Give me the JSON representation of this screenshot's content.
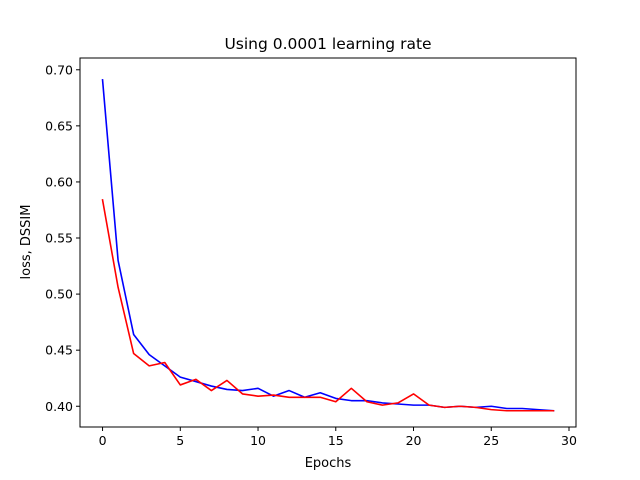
{
  "chart_data": {
    "type": "line",
    "title": "Using 0.0001 learning rate",
    "xlabel": "Epochs",
    "ylabel": "loss, DSSIM",
    "xlim": [
      -1.45,
      30.45
    ],
    "ylim": [
      0.3815,
      0.7105
    ],
    "xticks": [
      0,
      5,
      10,
      15,
      20,
      25,
      30
    ],
    "yticks": [
      0.4,
      0.45,
      0.5,
      0.55,
      0.6,
      0.65,
      0.7
    ],
    "ytick_labels": [
      "0.40",
      "0.45",
      "0.50",
      "0.55",
      "0.60",
      "0.65",
      "0.70"
    ],
    "grid": false,
    "legend": "none",
    "x": [
      0,
      1,
      2,
      3,
      4,
      5,
      6,
      7,
      8,
      9,
      10,
      11,
      12,
      13,
      14,
      15,
      16,
      17,
      18,
      19,
      20,
      21,
      22,
      23,
      24,
      25,
      26,
      27,
      28,
      29
    ],
    "series": [
      {
        "color": "#0000ff",
        "values": [
          0.691,
          0.53,
          0.464,
          0.446,
          0.436,
          0.426,
          0.422,
          0.418,
          0.415,
          0.414,
          0.416,
          0.409,
          0.414,
          0.408,
          0.412,
          0.407,
          0.405,
          0.405,
          0.403,
          0.402,
          0.401,
          0.401,
          0.399,
          0.4,
          0.399,
          0.4,
          0.398,
          0.398,
          0.397,
          0.396
        ]
      },
      {
        "color": "#ff0000",
        "values": [
          0.584,
          0.506,
          0.447,
          0.436,
          0.439,
          0.419,
          0.424,
          0.414,
          0.423,
          0.411,
          0.409,
          0.41,
          0.408,
          0.408,
          0.408,
          0.404,
          0.416,
          0.404,
          0.401,
          0.403,
          0.411,
          0.401,
          0.399,
          0.4,
          0.399,
          0.397,
          0.396,
          0.396,
          0.396,
          0.396
        ]
      }
    ]
  }
}
